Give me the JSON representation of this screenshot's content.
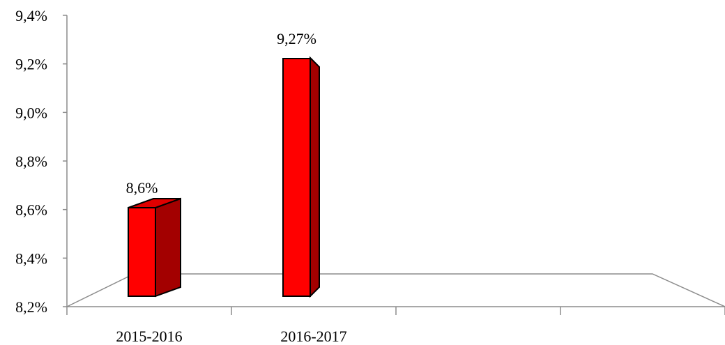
{
  "chart_data": {
    "type": "bar",
    "categories": [
      "2015-2016",
      "2016-2017",
      "",
      ""
    ],
    "values": [
      8.6,
      9.27,
      null,
      null
    ],
    "data_labels": [
      "8,6%",
      "9,27%",
      "",
      ""
    ],
    "yticks": [
      {
        "value": 8.2,
        "label": "8,2%"
      },
      {
        "value": 8.4,
        "label": "8,4%"
      },
      {
        "value": 8.6,
        "label": "8,6%"
      },
      {
        "value": 8.8,
        "label": "8,8%"
      },
      {
        "value": 9.0,
        "label": "9,0%"
      },
      {
        "value": 9.2,
        "label": "9,2%"
      },
      {
        "value": 9.4,
        "label": "9,4%"
      }
    ],
    "ylim": [
      8.2,
      9.4
    ],
    "grid": false,
    "legend": "none",
    "style": "3d-column",
    "colors": {
      "bar_front": "#ff0000",
      "bar_side": "#a30000",
      "bar_top": "#e00000",
      "outline": "#000000",
      "axis": "#8c8c8c"
    }
  }
}
